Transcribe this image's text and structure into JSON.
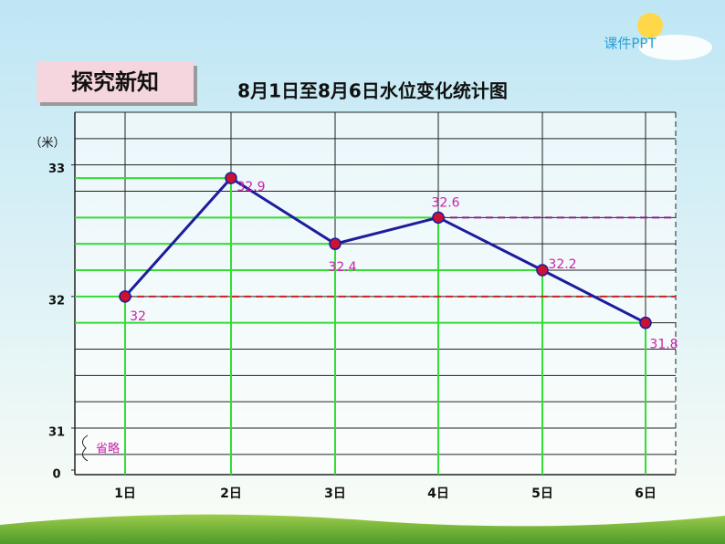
{
  "header": {
    "label": "探究新知",
    "logo": "课件PPT"
  },
  "chart_data": {
    "type": "line",
    "title": "8月1日至8月6日水位变化统计图",
    "y_label": "（米）",
    "categories": [
      "1日",
      "2日",
      "3日",
      "4日",
      "5日",
      "6日"
    ],
    "values": [
      32,
      32.9,
      32.4,
      32.6,
      32.2,
      31.8
    ],
    "color": "#1c1c9c",
    "marker_color": "#cc1133",
    "label_color": "#cc22aa",
    "ylim": [
      31,
      33.4
    ],
    "yticks": [
      33,
      32,
      31,
      0
    ],
    "axis_break": true,
    "annotations": [
      "省略"
    ]
  }
}
